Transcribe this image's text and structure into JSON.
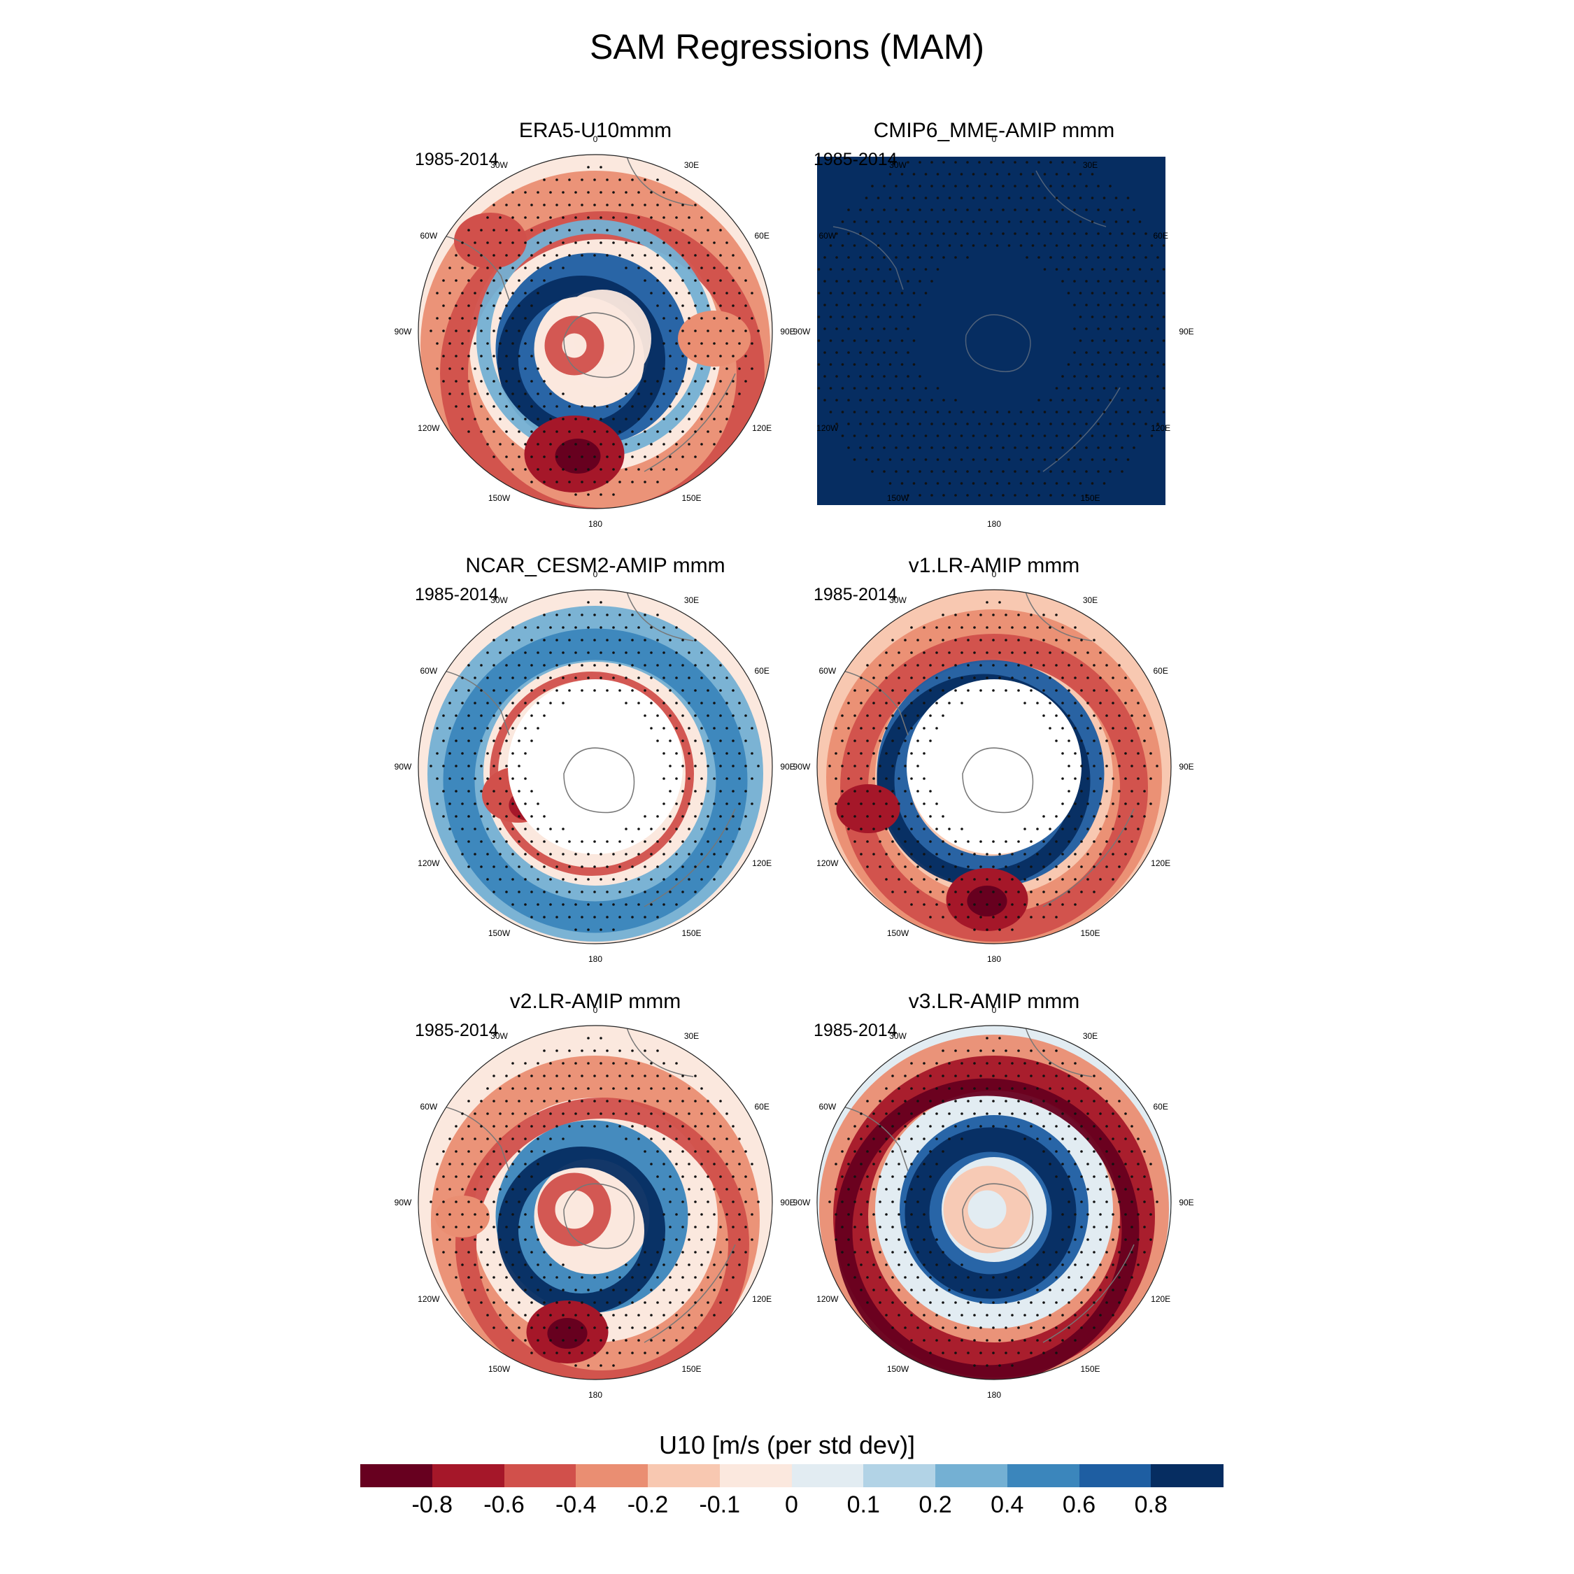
{
  "figure": {
    "title": "SAM Regressions (MAM)"
  },
  "panels": [
    {
      "id": "era5",
      "title": "ERA5-U10mmm",
      "period": "1985-2014",
      "style": "era5",
      "filled": false
    },
    {
      "id": "cmip6",
      "title": "CMIP6_MME-AMIP  mmm",
      "period": "1985-2014",
      "style": "cmip6",
      "filled": true
    },
    {
      "id": "cesm2",
      "title": "NCAR_CESM2-AMIP  mmm",
      "period": "1985-2014",
      "style": "cesm",
      "filled": false
    },
    {
      "id": "v1",
      "title": "v1.LR-AMIP  mmm",
      "period": "1985-2014",
      "style": "v1",
      "filled": false
    },
    {
      "id": "v2",
      "title": "v2.LR-AMIP  mmm",
      "period": "1985-2014",
      "style": "v2",
      "filled": false
    },
    {
      "id": "v3",
      "title": "v3.LR-AMIP  mmm",
      "period": "1985-2014",
      "style": "v3",
      "filled": false
    }
  ],
  "longitude_labels": [
    "0",
    "30E",
    "60E",
    "90E",
    "120E",
    "150E",
    "180",
    "150W",
    "120W",
    "90W",
    "60W",
    "30W"
  ],
  "colorbar": {
    "title": "U10 [m/s (per std dev)]",
    "colors": [
      "#67001f",
      "#a51729",
      "#d1504b",
      "#ea8e72",
      "#f8c8b1",
      "#fbe8de",
      "#e2ecf2",
      "#b2d3e6",
      "#74b0d3",
      "#3b86bc",
      "#1e5ea2",
      "#062d61"
    ],
    "labels": [
      "-0.8",
      "-0.6",
      "-0.4",
      "-0.2",
      "-0.1",
      "0",
      "0.1",
      "0.2",
      "0.4",
      "0.6",
      "0.8"
    ]
  }
}
